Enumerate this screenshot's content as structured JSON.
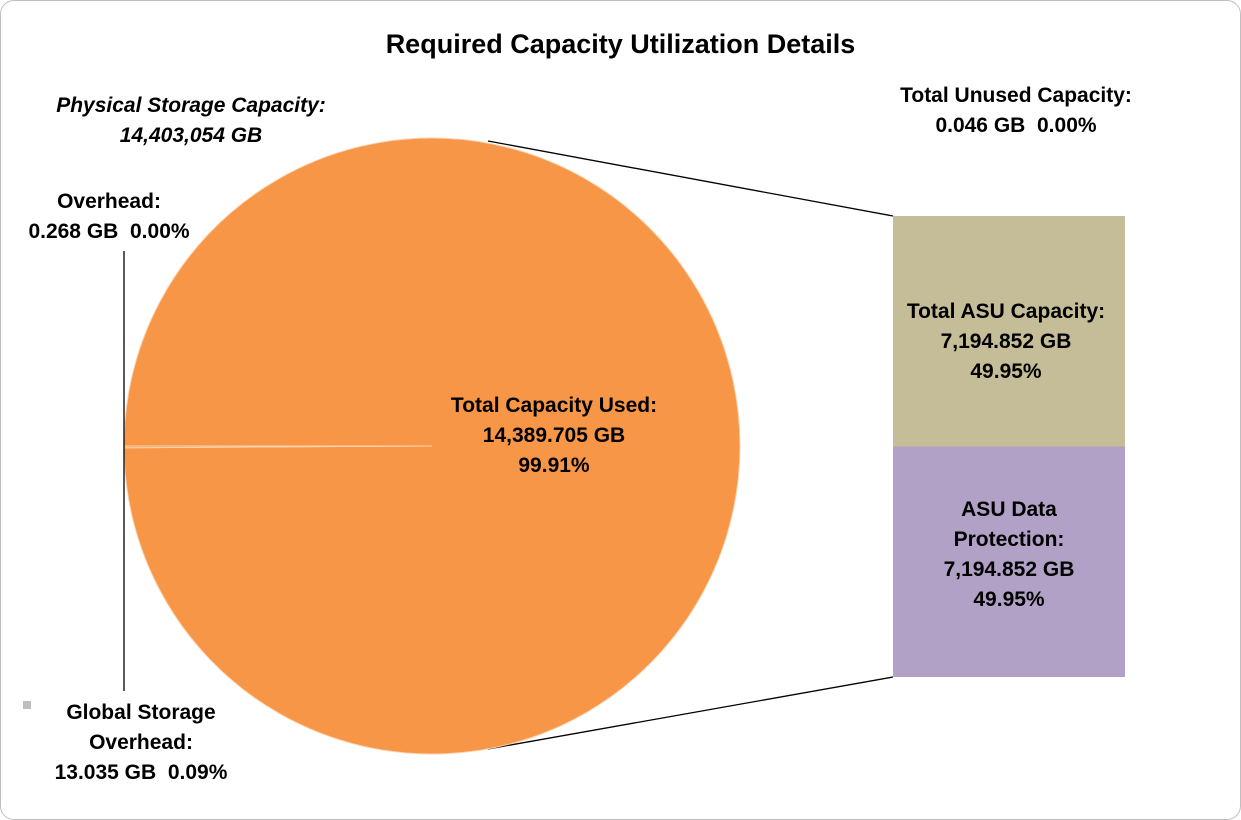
{
  "chart_data": {
    "type": "pie",
    "title": "Required Capacity Utilization Details",
    "subtitle": "Physical Storage Capacity:",
    "subtitle_value": "14,403,054 GB",
    "categories": [
      "Total Capacity Used:",
      "Global Storage Overhead:",
      "Overhead:"
    ],
    "values": [
      99.91,
      0.09,
      0.0
    ],
    "value_labels": [
      "99.91%",
      "0.09%",
      "0.00%"
    ],
    "capacity_labels": [
      "14,389.705 GB",
      "13.035 GB",
      "0.268 GB"
    ],
    "colors": [
      "#f79646",
      "#f79646",
      "#f79646"
    ],
    "bar": {
      "categories": [
        "Total Unused Capacity:",
        "Total ASU Capacity:",
        "ASU Data Protection:"
      ],
      "values": [
        0.0,
        49.95,
        49.95
      ],
      "value_labels": [
        "0.00%",
        "49.95%",
        "49.95%"
      ],
      "capacity_labels": [
        "0.046 GB",
        "7,194.852 GB",
        "7,194.852 GB"
      ],
      "colors": [
        "#d9d9d9",
        "#c4bd97",
        "#b2a1c7"
      ]
    }
  }
}
